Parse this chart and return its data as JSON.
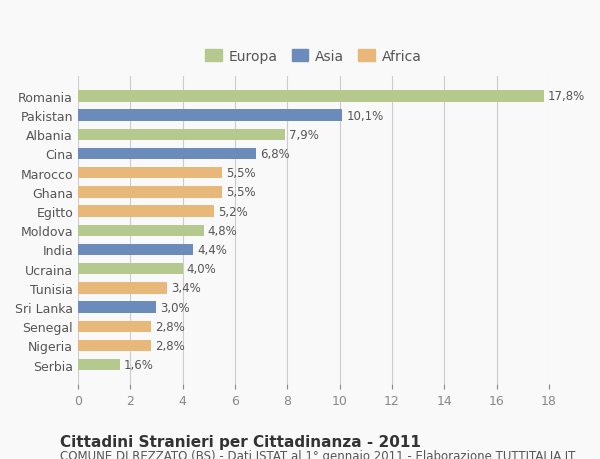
{
  "categories": [
    "Romania",
    "Pakistan",
    "Albania",
    "Cina",
    "Marocco",
    "Ghana",
    "Egitto",
    "Moldova",
    "India",
    "Ucraina",
    "Tunisia",
    "Sri Lanka",
    "Senegal",
    "Nigeria",
    "Serbia"
  ],
  "values": [
    17.8,
    10.1,
    7.9,
    6.8,
    5.5,
    5.5,
    5.2,
    4.8,
    4.4,
    4.0,
    3.4,
    3.0,
    2.8,
    2.8,
    1.6
  ],
  "labels": [
    "17,8%",
    "10,1%",
    "7,9%",
    "6,8%",
    "5,5%",
    "5,5%",
    "5,2%",
    "4,8%",
    "4,4%",
    "4,0%",
    "3,4%",
    "3,0%",
    "2,8%",
    "2,8%",
    "1,6%"
  ],
  "continents": [
    "Europa",
    "Asia",
    "Europa",
    "Asia",
    "Africa",
    "Africa",
    "Africa",
    "Europa",
    "Asia",
    "Europa",
    "Africa",
    "Asia",
    "Africa",
    "Africa",
    "Europa"
  ],
  "colors": {
    "Europa": "#b5c98e",
    "Asia": "#6b8cba",
    "Africa": "#e8b87a"
  },
  "legend_labels": [
    "Europa",
    "Asia",
    "Africa"
  ],
  "legend_colors": [
    "#b5c98e",
    "#6b8cba",
    "#e8b87a"
  ],
  "xlim": [
    0,
    18
  ],
  "xticks": [
    0,
    2,
    4,
    6,
    8,
    10,
    12,
    14,
    16,
    18
  ],
  "title": "Cittadini Stranieri per Cittadinanza - 2011",
  "subtitle": "COMUNE DI REZZATO (BS) - Dati ISTAT al 1° gennaio 2011 - Elaborazione TUTTITALIA.IT",
  "background_color": "#f9f9f9",
  "grid_color": "#cccccc",
  "bar_height": 0.6,
  "title_fontsize": 11,
  "subtitle_fontsize": 8.5,
  "label_fontsize": 8.5,
  "tick_fontsize": 9,
  "legend_fontsize": 10
}
